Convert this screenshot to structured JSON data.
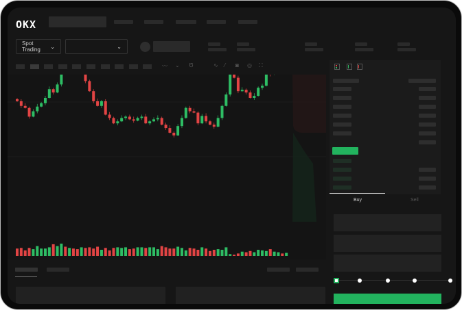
{
  "header": {
    "logo": "OKX"
  },
  "toolbar": {
    "market_type": "Spot Trading",
    "pair_select": "",
    "icons": [
      "indicator-icon",
      "line-type-icon",
      "interval-icon",
      "trend-line-icon",
      "ruler-icon",
      "camera-icon",
      "settings-icon",
      "fullscreen-icon"
    ]
  },
  "orderbook": {
    "view_icons": [
      "book-both-icon",
      "book-bids-icon",
      "book-asks-icon"
    ]
  },
  "trade": {
    "tabs": [
      {
        "label": "Buy",
        "active": true
      },
      {
        "label": "Sell",
        "active": false
      }
    ],
    "slider_percent": 0,
    "slider_steps": [
      0,
      25,
      50,
      75,
      100
    ]
  },
  "colors": {
    "up": "#2ebd64",
    "down": "#e24444",
    "accent": "#22b35e",
    "background": "#161616"
  },
  "chart": {
    "type": "candlestick",
    "closes": [
      95,
      88,
      85,
      72,
      80,
      87,
      92,
      100,
      113,
      108,
      120,
      140,
      138,
      145,
      142,
      140,
      142,
      125,
      110,
      95,
      88,
      95,
      75,
      70,
      62,
      65,
      70,
      72,
      68,
      66,
      70,
      72,
      62,
      65,
      68,
      70,
      60,
      55,
      48,
      44,
      58,
      70,
      85,
      80,
      78,
      62,
      73,
      65,
      60,
      57,
      70,
      88,
      105,
      155,
      130,
      110,
      112,
      108,
      100,
      103,
      115,
      118,
      148,
      135,
      140,
      150,
      142,
      148
    ],
    "volumes": [
      12,
      13,
      9,
      13,
      11,
      16,
      12,
      12,
      14,
      19,
      16,
      20,
      15,
      13,
      12,
      11,
      14,
      13,
      14,
      12,
      15,
      10,
      13,
      9,
      13,
      14,
      13,
      14,
      11,
      12,
      14,
      14,
      13,
      14,
      14,
      11,
      16,
      14,
      12,
      12,
      15,
      13,
      9,
      13,
      12,
      10,
      14,
      12,
      8,
      10,
      11,
      10,
      14,
      3,
      2,
      4,
      7,
      6,
      8,
      6,
      10,
      9,
      8,
      11,
      7,
      6,
      4,
      5
    ]
  }
}
